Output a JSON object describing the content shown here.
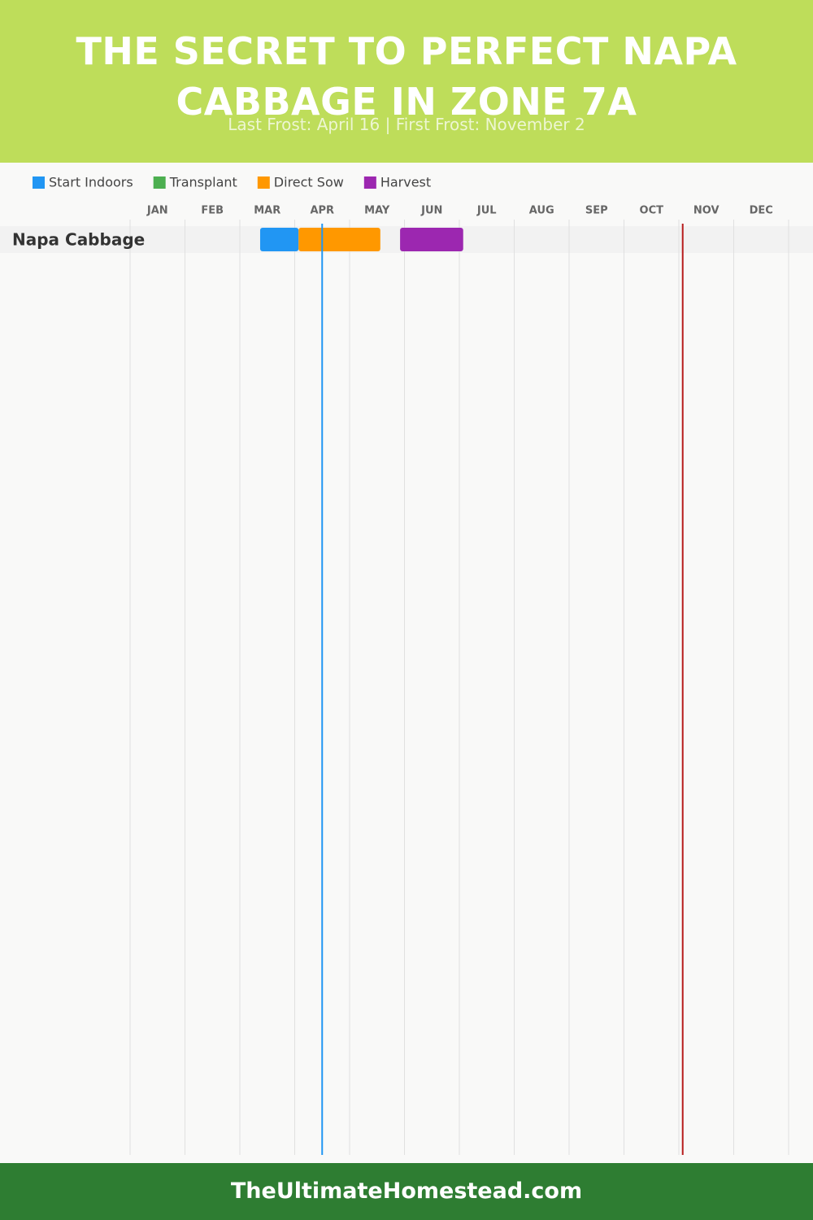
{
  "chart_data": {
    "type": "gantt",
    "title": "THE SECRET TO PERFECT NAPA CABBAGE IN ZONE 7A",
    "subtitle": "Last Frost: April 16 | First Frost: November 2",
    "categories": [
      "JAN",
      "FEB",
      "MAR",
      "APR",
      "MAY",
      "JUN",
      "JUL",
      "AUG",
      "SEP",
      "OCT",
      "NOV",
      "DEC"
    ],
    "xlim": [
      0,
      12
    ],
    "xticks": [
      0,
      1,
      2,
      3,
      4,
      5,
      6,
      7,
      8,
      9,
      10,
      11,
      12
    ],
    "grid": true,
    "rows": [
      "Napa Cabbage"
    ],
    "series": [
      {
        "name": "Start Indoors",
        "color": "#2196f3",
        "start": [
          2.37
        ],
        "end": [
          3.07
        ]
      },
      {
        "name": "Transplant",
        "color": "#4caf50",
        "start": [
          null
        ],
        "end": [
          null
        ]
      },
      {
        "name": "Direct Sow",
        "color": "#ff9800",
        "start": [
          3.07
        ],
        "end": [
          4.56
        ]
      },
      {
        "name": "Harvest",
        "color": "#9c27b0",
        "start": [
          4.92
        ],
        "end": [
          6.07
        ]
      }
    ],
    "markers": [
      {
        "value": 3.5,
        "color": "#2196f3"
      },
      {
        "value": 10.07,
        "color": "#b71c1c"
      }
    ],
    "footer": "TheUltimateHomestead.com"
  }
}
